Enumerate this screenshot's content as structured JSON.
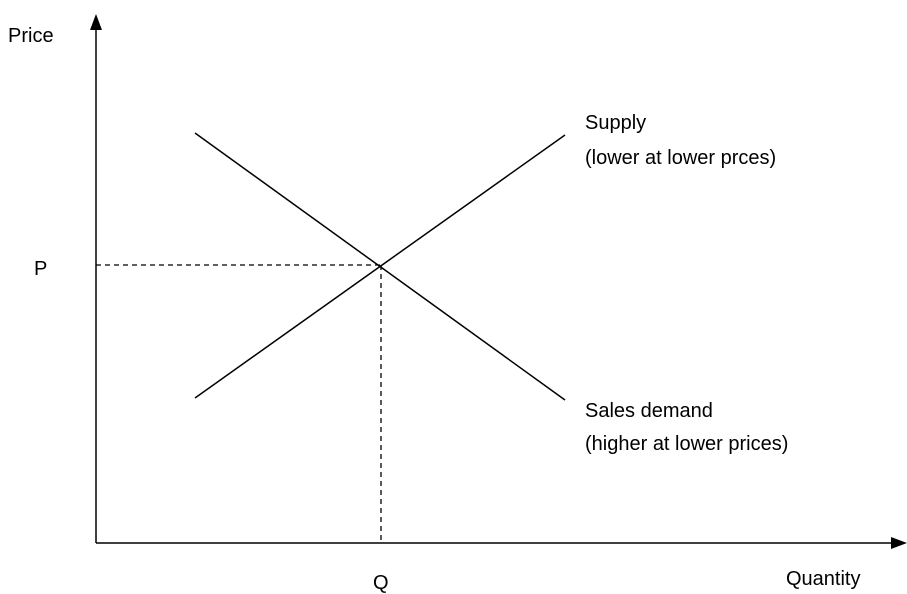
{
  "axes": {
    "y_label": "Price",
    "x_label": "Quantity"
  },
  "equilibrium": {
    "price_label": "P",
    "quantity_label": "Q"
  },
  "curves": [
    {
      "name": "Supply",
      "note": "(lower at lower prces)"
    },
    {
      "name": "Sales demand",
      "note": "(higher at lower prices)"
    }
  ]
}
